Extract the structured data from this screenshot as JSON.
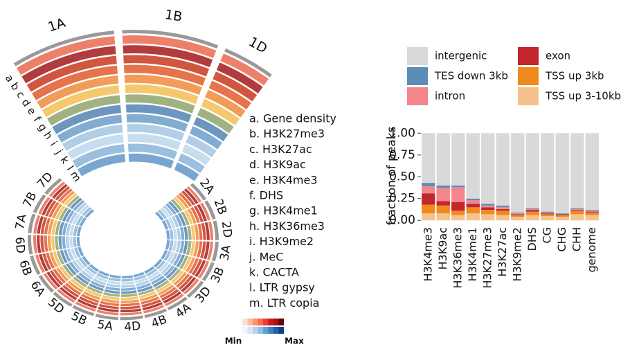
{
  "chart_data": [
    {
      "type": "circos",
      "zoom_labels": [
        "1A",
        "1B",
        "1D"
      ],
      "categories": [
        "2A",
        "2B",
        "2D",
        "3A",
        "3B",
        "3D",
        "4A",
        "4B",
        "4D",
        "5A",
        "5B",
        "5D",
        "6A",
        "6B",
        "6D",
        "7A",
        "7B",
        "7D"
      ],
      "tracks": [
        {
          "letter": "a",
          "label": "a. Gene density",
          "color": "#ea6a4f"
        },
        {
          "letter": "b",
          "label": "b. H3K27me3",
          "color": "#a31a1c"
        },
        {
          "letter": "c",
          "label": "c. H3K27ac",
          "color": "#c9381f"
        },
        {
          "letter": "d",
          "label": "d. H3K9ac",
          "color": "#e05a2b"
        },
        {
          "letter": "e",
          "label": "e. H3K4me3",
          "color": "#f08c3a"
        },
        {
          "letter": "f",
          "label": "f. DHS",
          "color": "#f5be55"
        },
        {
          "letter": "g",
          "label": "g. H3K4me1",
          "color": "#8fa56b"
        },
        {
          "letter": "h",
          "label": "h. H3K36me3",
          "color": "#5384b4"
        },
        {
          "letter": "i",
          "label": "i. H3K9me2",
          "color": "#6d9dca"
        },
        {
          "letter": "j",
          "label": "j. MeC",
          "color": "#a3c6e2"
        },
        {
          "letter": "k",
          "label": "k. CACTA",
          "color": "#bcd7ec"
        },
        {
          "letter": "l",
          "label": "l. LTR gypsy",
          "color": "#8ab4d8"
        },
        {
          "letter": "m",
          "label": "m. LTR copia",
          "color": "#6197c8"
        }
      ],
      "colorbar_labels": [
        "Min",
        "Max"
      ]
    },
    {
      "type": "bar",
      "stacked": true,
      "ylabel": "fraction of peaks",
      "categories": [
        "H3K4me3",
        "H3K9ac",
        "H3K36me3",
        "H3K4me1",
        "H3K27me3",
        "H3K27ac",
        "H3K9me2",
        "DHS",
        "CG",
        "CHG",
        "CHH",
        "genome"
      ],
      "series": [
        {
          "name": "TSS up 3-10kb",
          "color": "#f5c28d",
          "values": [
            0.08,
            0.08,
            0.06,
            0.08,
            0.07,
            0.06,
            0.04,
            0.06,
            0.05,
            0.04,
            0.07,
            0.06
          ]
        },
        {
          "name": "TSS up 3kb",
          "color": "#f08a1e",
          "values": [
            0.1,
            0.09,
            0.05,
            0.07,
            0.05,
            0.05,
            0.02,
            0.04,
            0.02,
            0.02,
            0.04,
            0.03
          ]
        },
        {
          "name": "exon",
          "color": "#c1272d",
          "values": [
            0.13,
            0.05,
            0.1,
            0.04,
            0.03,
            0.02,
            0.01,
            0.02,
            0.01,
            0.01,
            0.01,
            0.01
          ]
        },
        {
          "name": "intron",
          "color": "#f4868c",
          "values": [
            0.08,
            0.15,
            0.17,
            0.04,
            0.02,
            0.02,
            0.01,
            0.01,
            0.01,
            0.0,
            0.01,
            0.01
          ]
        },
        {
          "name": "TES down 3kb",
          "color": "#5b8db8",
          "values": [
            0.04,
            0.03,
            0.02,
            0.02,
            0.02,
            0.02,
            0.01,
            0.01,
            0.01,
            0.01,
            0.01,
            0.01
          ]
        },
        {
          "name": "intergenic",
          "color": "#d9d9d9",
          "values": [
            0.57,
            0.6,
            0.6,
            0.75,
            0.81,
            0.83,
            0.91,
            0.86,
            0.9,
            0.92,
            0.86,
            0.88
          ]
        }
      ],
      "ylim": [
        -0.03,
        1.05
      ],
      "yticks": [
        {
          "value": 0,
          "label": "0.00"
        },
        {
          "value": 0.25,
          "label": "0.25"
        },
        {
          "value": 0.5,
          "label": "0.50"
        },
        {
          "value": 0.75,
          "label": "0.75"
        },
        {
          "value": 1,
          "label": "1.00"
        }
      ]
    }
  ]
}
